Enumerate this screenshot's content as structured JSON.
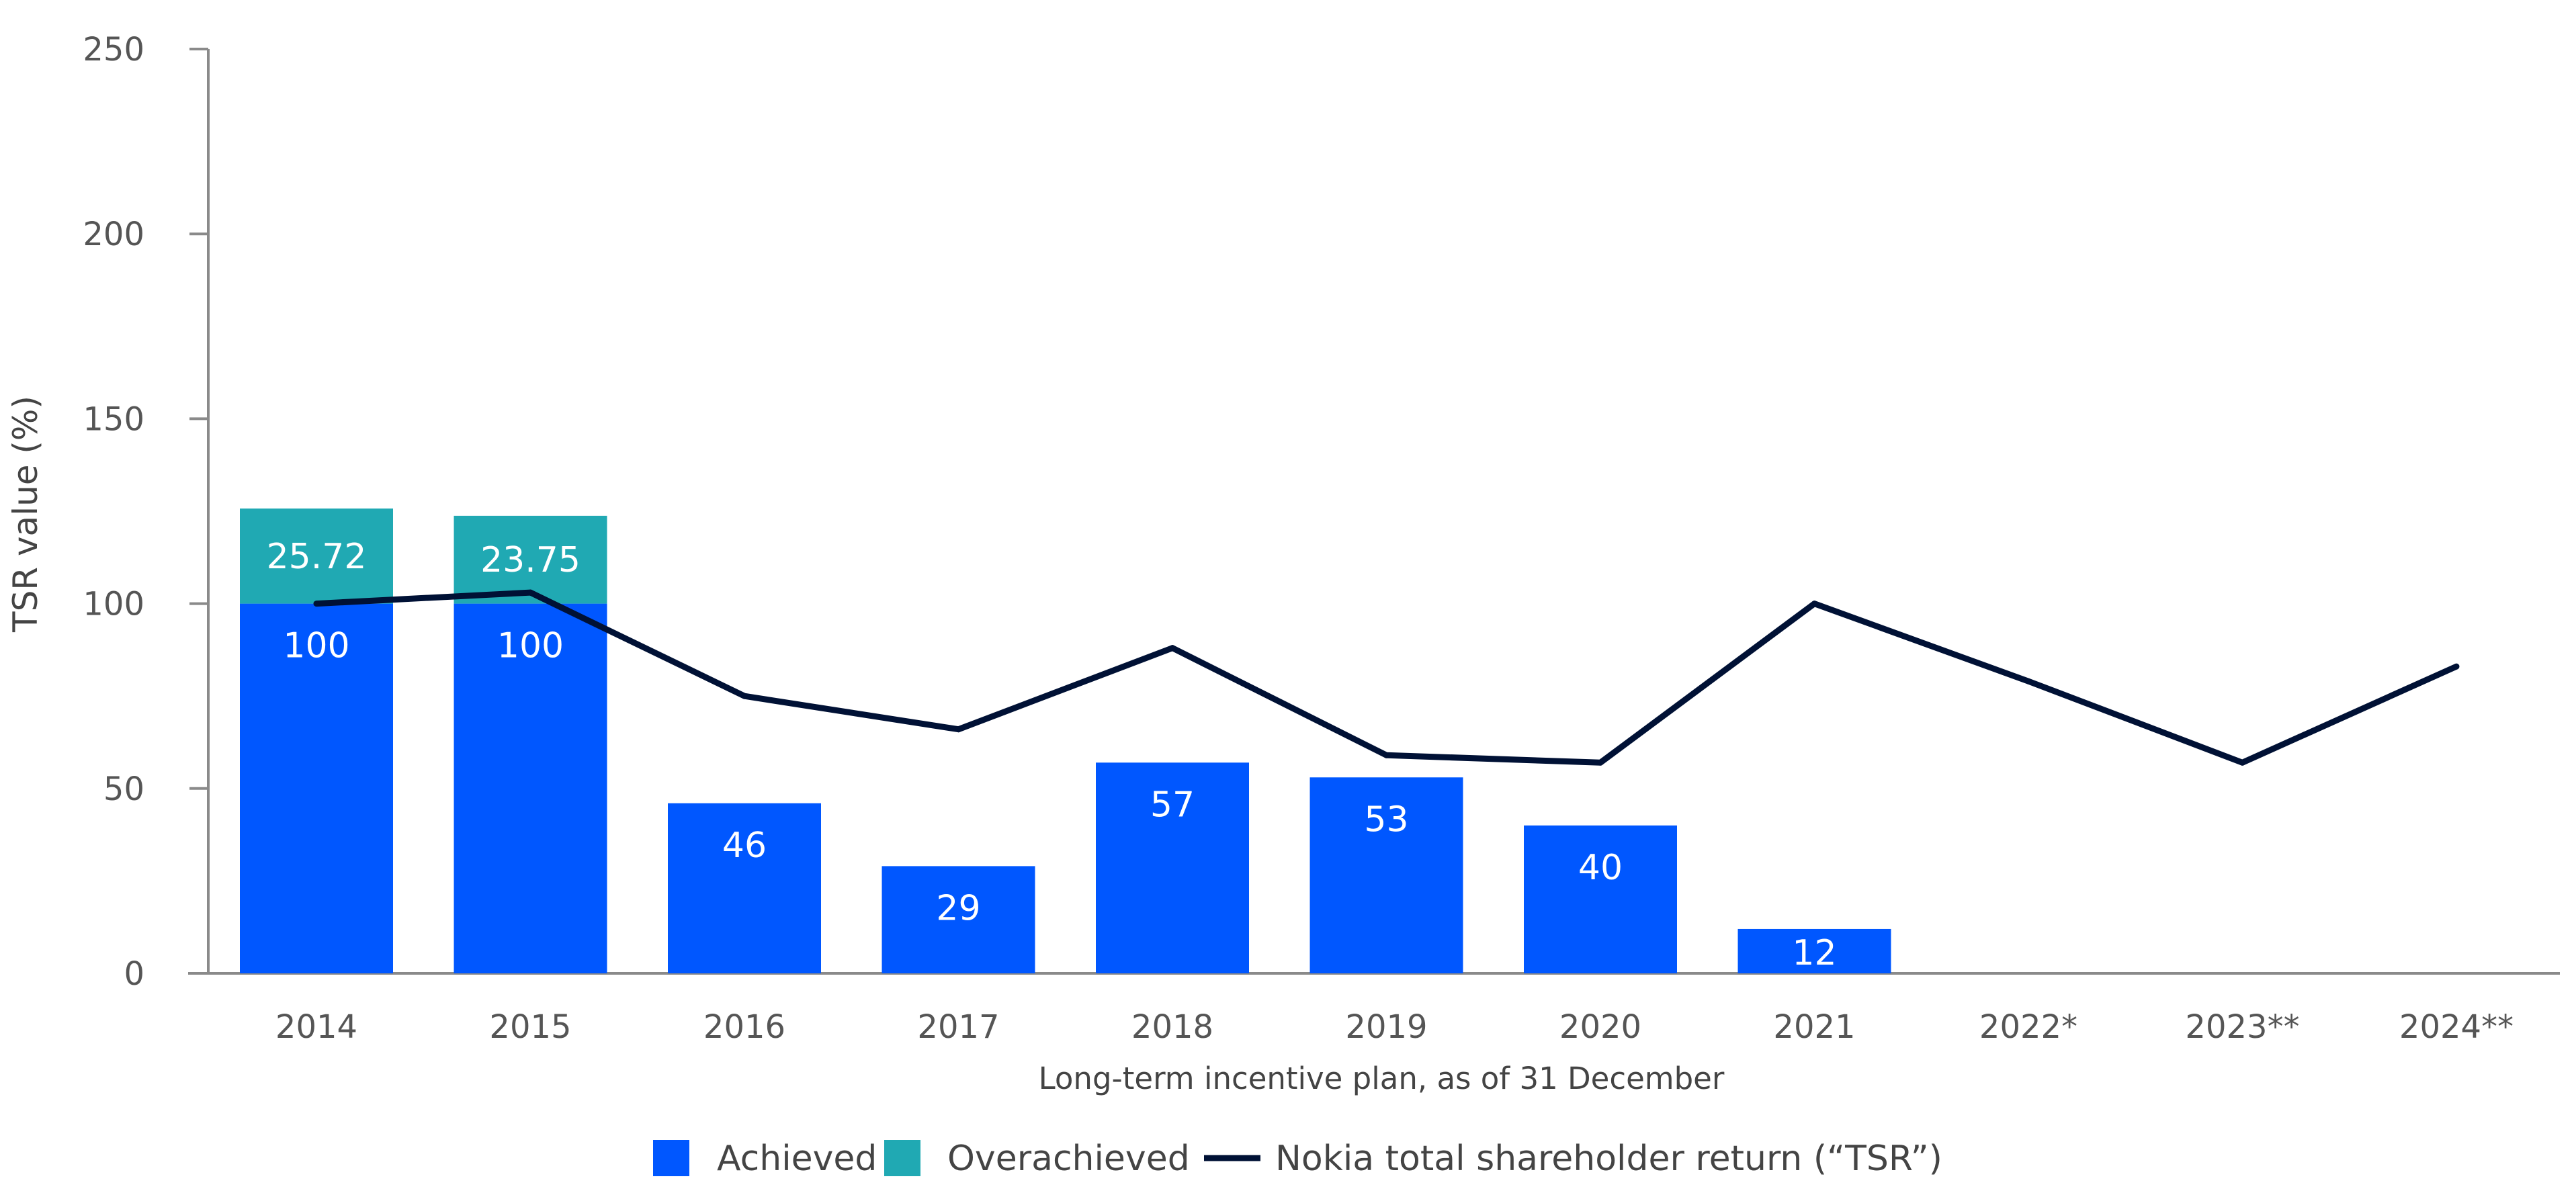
{
  "chart_data": {
    "type": "bar",
    "title": "",
    "xlabel": "Long-term incentive plan, as of 31 December",
    "ylabel": "TSR value (%)",
    "ylim": [
      0,
      250
    ],
    "yticks": [
      0,
      50,
      100,
      150,
      200,
      250
    ],
    "categories": [
      "2014",
      "2015",
      "2016",
      "2017",
      "2018",
      "2019",
      "2020",
      "2021",
      "2022*",
      "2023**",
      "2024**"
    ],
    "series": [
      {
        "name": "Achieved",
        "kind": "bar",
        "color": "#0057ff",
        "values": [
          100,
          100,
          46,
          29,
          57,
          53,
          40,
          12,
          null,
          null,
          null
        ],
        "labels": [
          "100",
          "100",
          "46",
          "29",
          "57",
          "53",
          "40",
          "12",
          null,
          null,
          null
        ]
      },
      {
        "name": "Overachieved",
        "kind": "bar-stacked",
        "color": "#20a9b3",
        "values": [
          25.72,
          23.75,
          null,
          null,
          null,
          null,
          null,
          null,
          null,
          null,
          null
        ],
        "labels": [
          "25.72",
          "23.75",
          null,
          null,
          null,
          null,
          null,
          null,
          null,
          null,
          null
        ]
      },
      {
        "name": "Nokia total shareholder return (“TSR”)",
        "kind": "line",
        "color": "#001135",
        "values": [
          100,
          103,
          75,
          66,
          88,
          59,
          57,
          100,
          79,
          57,
          83
        ]
      }
    ],
    "legend": {
      "position": "bottom-center",
      "items": [
        "Achieved",
        "Overachieved",
        "Nokia total shareholder return (“TSR”)"
      ]
    },
    "grid": false
  }
}
